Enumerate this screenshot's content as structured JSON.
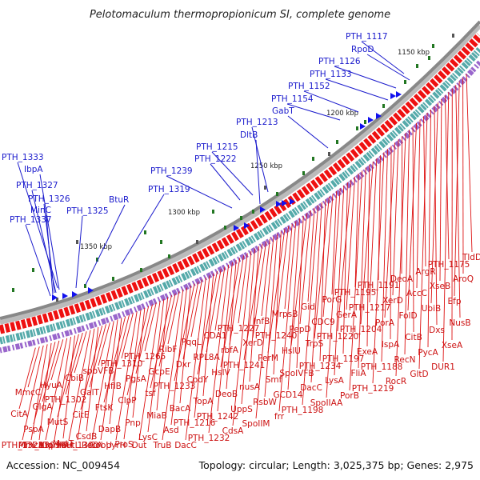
{
  "title": "Pelotomaculum thermopropionicum SI, complete genome",
  "footer": {
    "accession": "Accession: NC_009454",
    "topology": "Topology: circular; Length: 3,025,375 bp; Genes: 2,975"
  },
  "colors": {
    "forward": "#2222ee",
    "reverse": "#ee1111",
    "backbone": "#888888"
  },
  "ticks": [
    "1150 kbp",
    "1200 kbp",
    "1250 kbp",
    "1300 kbp",
    "1350 kbp"
  ],
  "forward_labels": [
    "PTH_1117",
    "RpoD",
    "PTH_1126",
    "PTH_1133",
    "PTH_1152",
    "PTH_1154",
    "GabT",
    "PTH_1213",
    "DltB",
    "PTH_1215",
    "PTH_1222",
    "PTH_1239",
    "PTH_1319",
    "BtuR",
    "PTH_1325",
    "PTH_1333",
    "IbpA",
    "PTH_1327",
    "PTH_1326",
    "MinC",
    "PTH_1337"
  ],
  "reverse_labels": [
    "TldD",
    "AroQ",
    "Efp",
    "NusB",
    "XseA",
    "DUR1",
    "PTH_1175",
    "XseB",
    "UbiB",
    "Dxs",
    "PycA",
    "GltD",
    "ArgR",
    "AccC",
    "FolD",
    "CitB",
    "RecN",
    "RocR",
    "DeoA",
    "XerD",
    "PorA",
    "IspA",
    "PTH_1188",
    "PTH_1219",
    "PTH_1191",
    "PTH_1217",
    "PTH_1204",
    "ExeA",
    "FliA",
    "PorB",
    "PTH_1195",
    "GerA",
    "PTH_1220",
    "PTH_1197",
    "LysA",
    "SpoIIAA",
    "PorG",
    "CDC9",
    "TrpS",
    "PTH_1234",
    "DacC",
    "PTH_1198",
    "Gid",
    "PepD",
    "HslU",
    "SpoIVFB",
    "GCD14",
    "frr",
    "MrpsB",
    "PTH_1240",
    "PerM",
    "Smf",
    "RsbW",
    "SpoIIM",
    "InfB",
    "XerD",
    "PTH_1241",
    "nusA",
    "UppS",
    "CdsA",
    "PTH_1227",
    "rbfA",
    "HslV",
    "DeoB",
    "PTH_1242",
    "PTH_1232",
    "CDA1",
    "RPL8A",
    "CodY",
    "TopA",
    "PTH_1216",
    "DacC",
    "PqqL",
    "Dxr",
    "PTH_1233",
    "BacA",
    "Asd",
    "TruB",
    "RibF",
    "GcpE",
    "tsf",
    "MiaB",
    "LysC",
    "Dut",
    "PTH_1265",
    "PgsA",
    "ClpP",
    "Pnp",
    "ProS",
    "pyrH",
    "PTH_1310",
    "HflB",
    "FtsK",
    "DapB",
    "CobU",
    "RecA",
    "spoVFB",
    "GalT",
    "CitE",
    "CsdB",
    "PTH_1300",
    "mutL",
    "CbiB",
    "PTH_1302",
    "MutS",
    "MutT",
    "GpmB",
    "Hfq",
    "HyuA",
    "GlgA",
    "PspA",
    "PTH_1303",
    "MmcA",
    "PTH_1321",
    "MmcC",
    "CitA"
  ]
}
